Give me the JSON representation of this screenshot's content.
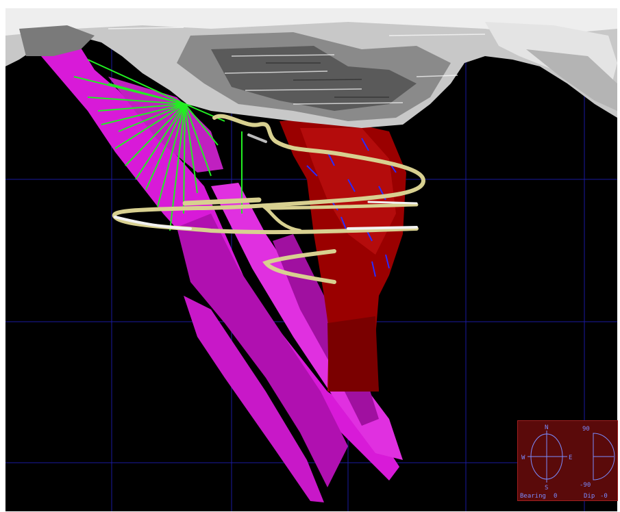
{
  "viewer": {
    "colors": {
      "background": "#000000",
      "grid": "#1a1aa0",
      "terrain": "#d8d8d8",
      "fault_planes": "#e020e0",
      "drillholes": "#20ff20",
      "orebody": "#a00000",
      "decline": "#d8d090",
      "panel": "#5a0a0a",
      "panel_text": "#7a8cff"
    }
  },
  "compass": {
    "north": "N",
    "south": "S",
    "west": "W",
    "east": "E",
    "dip_top": "90",
    "dip_bottom": "-90",
    "bearing_label": "Bearing",
    "bearing_value": "0",
    "dip_label": "Dip",
    "dip_value": "-0"
  }
}
